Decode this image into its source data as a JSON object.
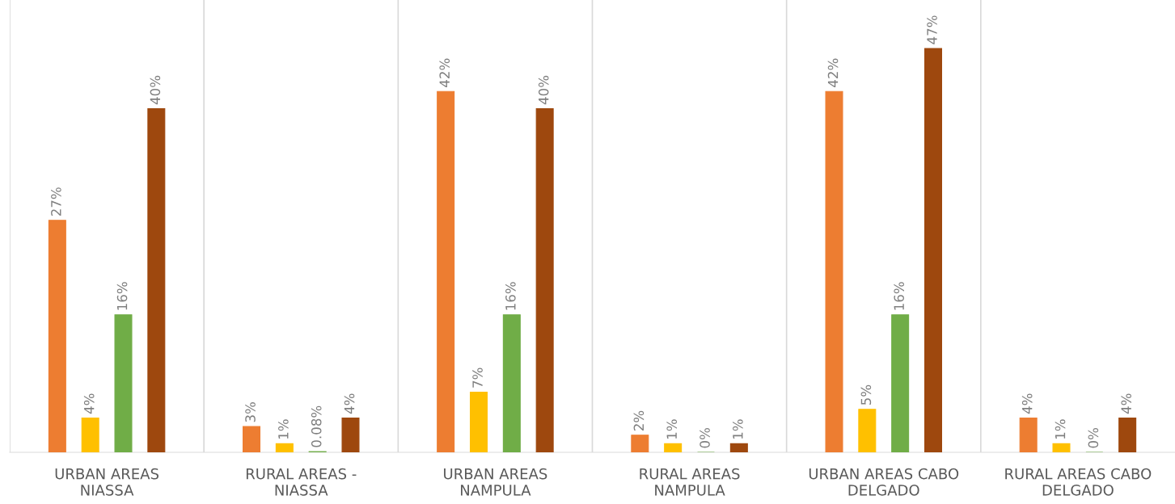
{
  "chart_data": {
    "type": "bar",
    "categories": [
      "URBAN AREAS NIASSA",
      "RURAL AREAS - NIASSA",
      "URBAN AREAS NAMPULA",
      "RURAL AREAS NAMPULA",
      "URBAN AREAS CABO DELGADO",
      "RURAL AREAS CABO DELGADO"
    ],
    "series": [
      {
        "color": "#ed7d31",
        "values": [
          27,
          3,
          42,
          2,
          42,
          4
        ],
        "value_labels": [
          "27%",
          "3%",
          "42%",
          "2%",
          "42%",
          "4%"
        ]
      },
      {
        "color": "#ffc000",
        "values": [
          4,
          1,
          7,
          1,
          5,
          1
        ],
        "value_labels": [
          "4%",
          "1%",
          "7%",
          "1%",
          "5%",
          "1%"
        ]
      },
      {
        "color": "#70ad47",
        "values": [
          16,
          0.08,
          16,
          0,
          16,
          0
        ],
        "value_labels": [
          "16%",
          "0.08%",
          "16%",
          "0%",
          "16%",
          "0%"
        ]
      },
      {
        "color": "#9e480e",
        "values": [
          40,
          4,
          40,
          1,
          47,
          4
        ],
        "value_labels": [
          "40%",
          "4%",
          "40%",
          "1%",
          "47%",
          "4%"
        ]
      }
    ],
    "grid": "x",
    "legend": false
  }
}
